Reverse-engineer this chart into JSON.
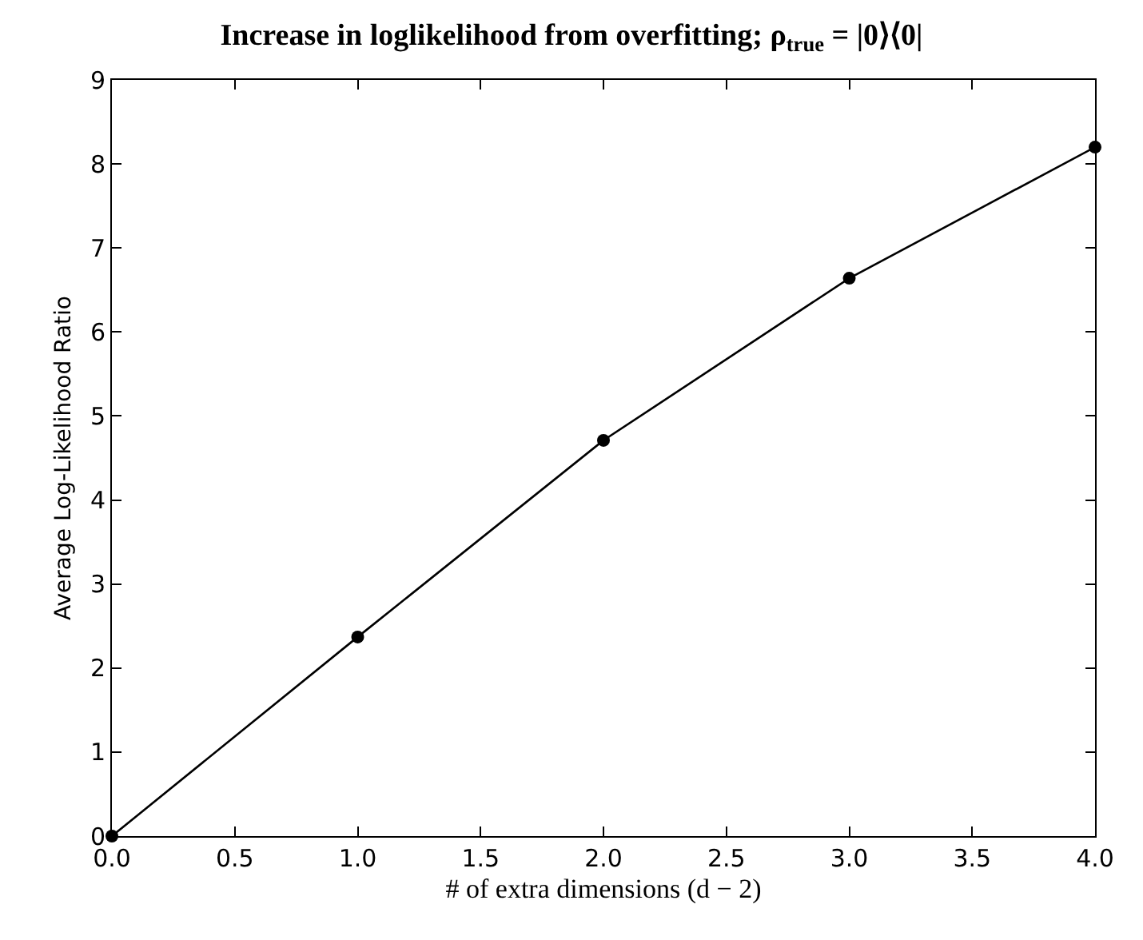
{
  "chart_data": {
    "type": "line",
    "title": "Increase in loglikelihood from overfitting; ρ$_{true}$ = |0⟩⟨0|",
    "xlabel": "# of extra dimensions (d − 2)",
    "ylabel": "Average Log-Likelihood Ratio",
    "x": [
      0,
      1,
      2,
      3,
      4
    ],
    "series": [
      {
        "color": "#000000",
        "values": [
          0,
          2.37,
          4.71,
          6.64,
          8.2
        ]
      }
    ],
    "xlim": [
      0,
      4
    ],
    "xticks": [
      {
        "value": 0,
        "label": "0.0"
      },
      {
        "value": 0.5,
        "label": "0.5"
      },
      {
        "value": 1,
        "label": "1.0"
      },
      {
        "value": 1.5,
        "label": "1.5"
      },
      {
        "value": 2,
        "label": "2.0"
      },
      {
        "value": 2.5,
        "label": "2.5"
      },
      {
        "value": 3,
        "label": "3.0"
      },
      {
        "value": 3.5,
        "label": "3.5"
      },
      {
        "value": 4,
        "label": "4.0"
      }
    ],
    "ylim": [
      0,
      9
    ],
    "yticks": [
      0,
      1,
      2,
      3,
      4,
      5,
      6,
      7,
      8,
      9
    ],
    "marker": "circle",
    "line_style": "solid"
  }
}
